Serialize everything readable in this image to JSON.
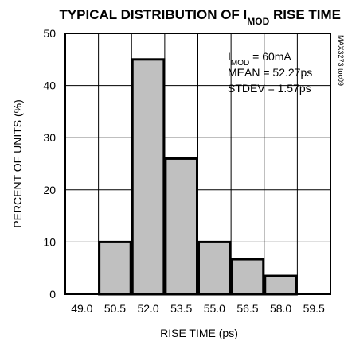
{
  "chart_data": {
    "type": "bar",
    "title": {
      "prefix": "TYPICAL DISTRIBUTION OF I",
      "subscript": "MOD",
      "suffix": " RISE TIME"
    },
    "xlabel": "RISE TIME (ps)",
    "ylabel": "PERCENT OF UNITS (%)",
    "categories": [
      "49.0",
      "50.5",
      "52.0",
      "53.5",
      "55.0",
      "56.5",
      "58.0",
      "59.5"
    ],
    "values": [
      0,
      10,
      45,
      26,
      10,
      6.7,
      3.5,
      0
    ],
    "ylim": [
      0,
      50
    ],
    "yticks": [
      "0",
      "10",
      "20",
      "30",
      "40",
      "50"
    ],
    "grid": true,
    "bar_fill": "#c0c0c0",
    "annotations": {
      "imod_prefix": "I",
      "imod_subscript": "MOD",
      "imod_suffix": " = 60mA",
      "mean": "MEAN = 52.27ps",
      "stdev": "STDEV = 1.57ps"
    },
    "figure_code": "MAX3273 toc09"
  }
}
